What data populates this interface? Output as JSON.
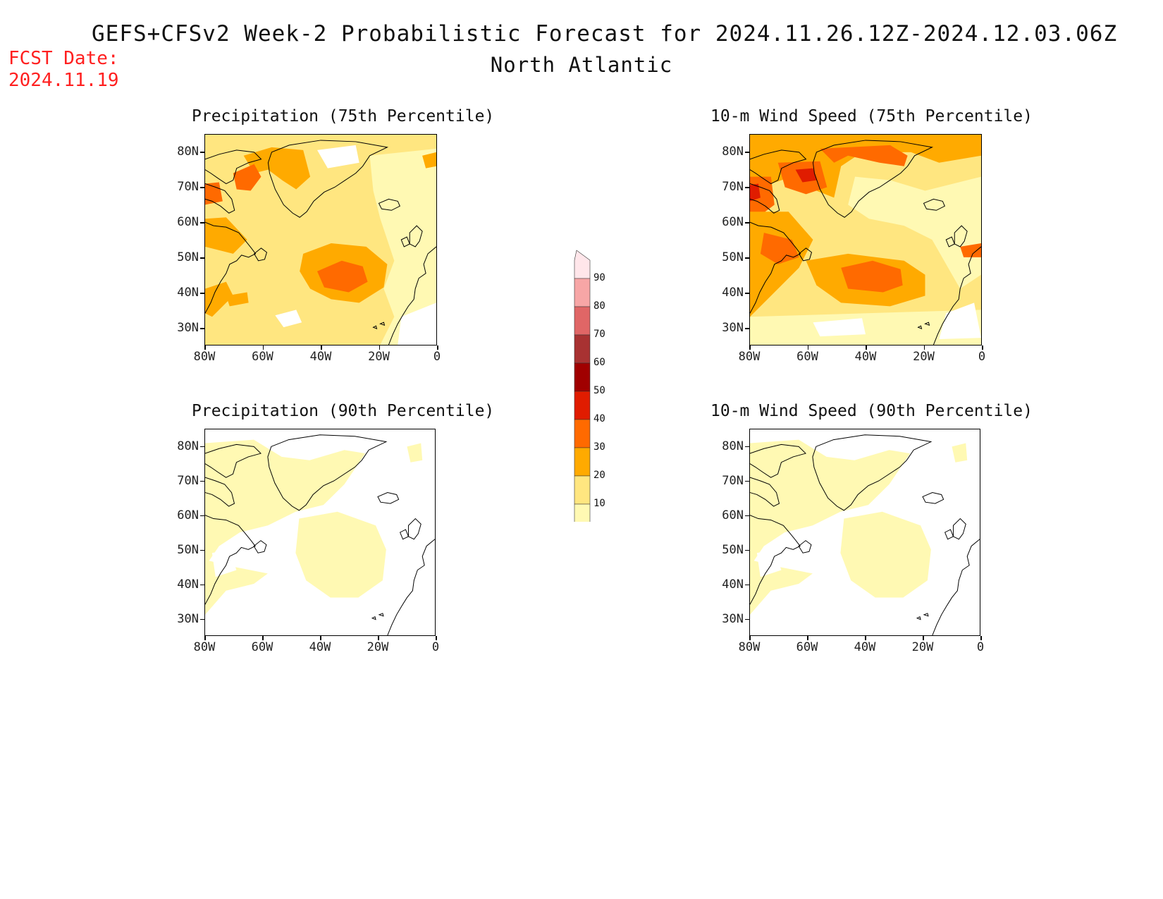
{
  "title": "GEFS+CFSv2 Week-2 Probabilistic Forecast for 2024.11.26.12Z-2024.12.03.06Z",
  "subtitle": "North Atlantic",
  "fcst_date_label": "FCST Date:",
  "fcst_date_value": "2024.11.19",
  "lat_ticks": [
    "80N",
    "70N",
    "60N",
    "50N",
    "40N",
    "30N"
  ],
  "lon_ticks": [
    "80W",
    "60W",
    "40W",
    "20W",
    "0"
  ],
  "panels": [
    {
      "title": "Precipitation (75th Percentile)",
      "level": "high"
    },
    {
      "title": "10-m Wind Speed (75th Percentile)",
      "level": "veryhigh"
    },
    {
      "title": "Precipitation (90th Percentile)",
      "level": "low"
    },
    {
      "title": "10-m Wind Speed (90th Percentile)",
      "level": "low"
    }
  ],
  "colorbar": {
    "levels": [
      "10",
      "20",
      "30",
      "40",
      "50",
      "60",
      "70",
      "80",
      "90"
    ],
    "colors": [
      "#fff9b3",
      "#ffe680",
      "#ffaa00",
      "#ff6a00",
      "#e01c00",
      "#a00000",
      "#a83232",
      "#e06666",
      "#f7a6a6",
      "#ffe6ea"
    ]
  },
  "palette": {
    "c10": "#fff9b3",
    "c20": "#ffe680",
    "c30": "#ffaa00",
    "c40": "#ff6a00",
    "c50": "#e01c00"
  }
}
